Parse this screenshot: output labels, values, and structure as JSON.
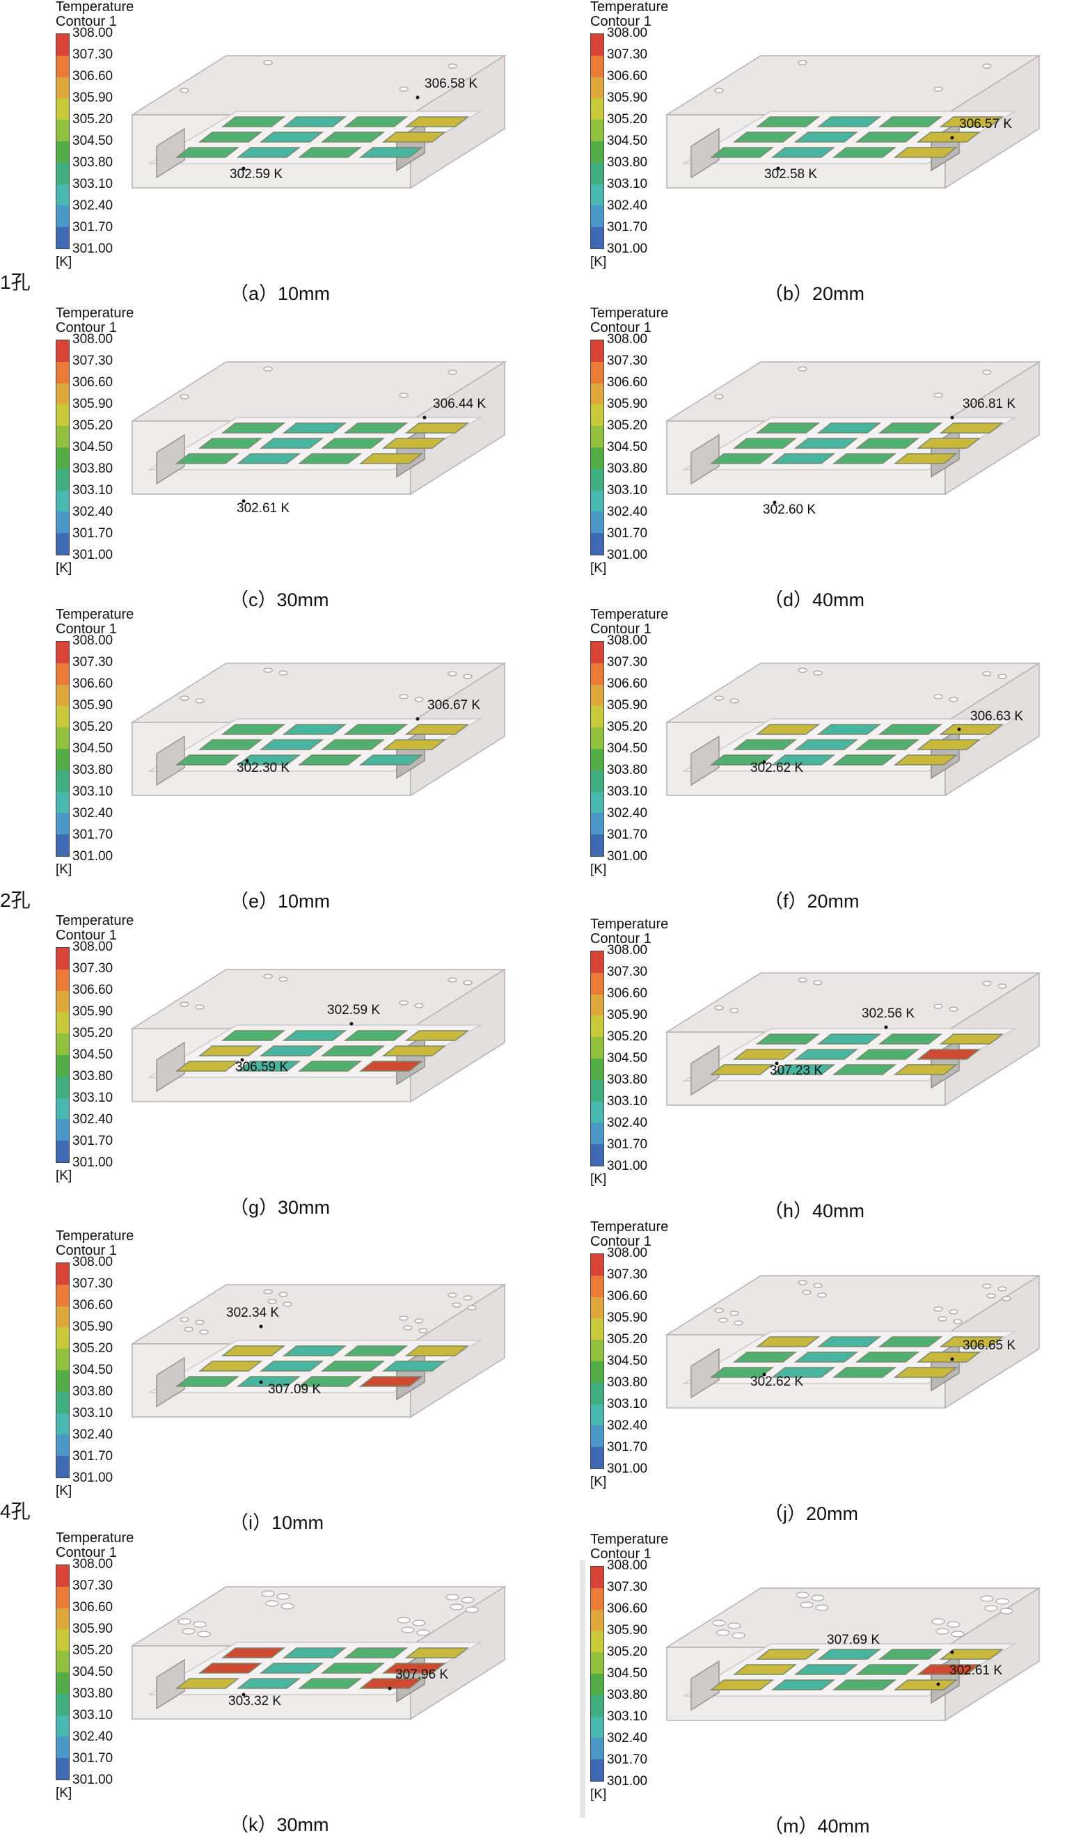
{
  "legend": {
    "title_line1": "Temperature",
    "title_line2": "Contour 1",
    "unit": "[K]",
    "ticks": [
      "308.00",
      "307.30",
      "306.60",
      "305.90",
      "305.20",
      "304.50",
      "303.80",
      "303.10",
      "302.40",
      "301.70",
      "301.00"
    ],
    "colors": [
      "#d94436",
      "#eb7a36",
      "#e0a83a",
      "#c9c93a",
      "#8fc13c",
      "#52ad46",
      "#3fae7e",
      "#48b8b0",
      "#4a98c8",
      "#3f69b5",
      "#35398f"
    ]
  },
  "groups": [
    {
      "label": "1孔"
    },
    {
      "label": "2孔"
    },
    {
      "label": "4孔"
    }
  ],
  "panels": [
    {
      "id": "a",
      "caption": "（a）10mm",
      "min_label": "302.59 K",
      "max_label": "306.58 K",
      "holes": 1
    },
    {
      "id": "b",
      "caption": "（b）20mm",
      "min_label": "302.58 K",
      "max_label": "306.57 K",
      "holes": 1
    },
    {
      "id": "c",
      "caption": "（c）30mm",
      "min_label": "302.61 K",
      "max_label": "306.44 K",
      "holes": 1
    },
    {
      "id": "d",
      "caption": "（d）40mm",
      "min_label": "302.60 K",
      "max_label": "306.81 K",
      "holes": 1
    },
    {
      "id": "e",
      "caption": "（e）10mm",
      "min_label": "302.30 K",
      "max_label": "306.67 K",
      "holes": 2
    },
    {
      "id": "f",
      "caption": "（f）20mm",
      "min_label": "302.62 K",
      "max_label": "306.63 K",
      "holes": 2
    },
    {
      "id": "g",
      "caption": "（g）30mm",
      "min_label": "302.59 K",
      "max_label": "306.59 K",
      "holes": 2
    },
    {
      "id": "h",
      "caption": "（h）40mm",
      "min_label": "302.56 K",
      "max_label": "307.23 K",
      "holes": 2
    },
    {
      "id": "i",
      "caption": "（i）10mm",
      "min_label": "302.34 K",
      "max_label": "307.09 K",
      "holes": 4
    },
    {
      "id": "j",
      "caption": "（j）20mm",
      "min_label": "302.62 K",
      "max_label": "306.65 K",
      "holes": 4
    },
    {
      "id": "k",
      "caption": "（k）30mm",
      "min_label": "303.32 K",
      "max_label": "307.96 K",
      "holes": 4
    },
    {
      "id": "m",
      "caption": "（m）40mm",
      "min_label": "302.61 K",
      "max_label": "307.69 K",
      "holes": 4
    }
  ]
}
